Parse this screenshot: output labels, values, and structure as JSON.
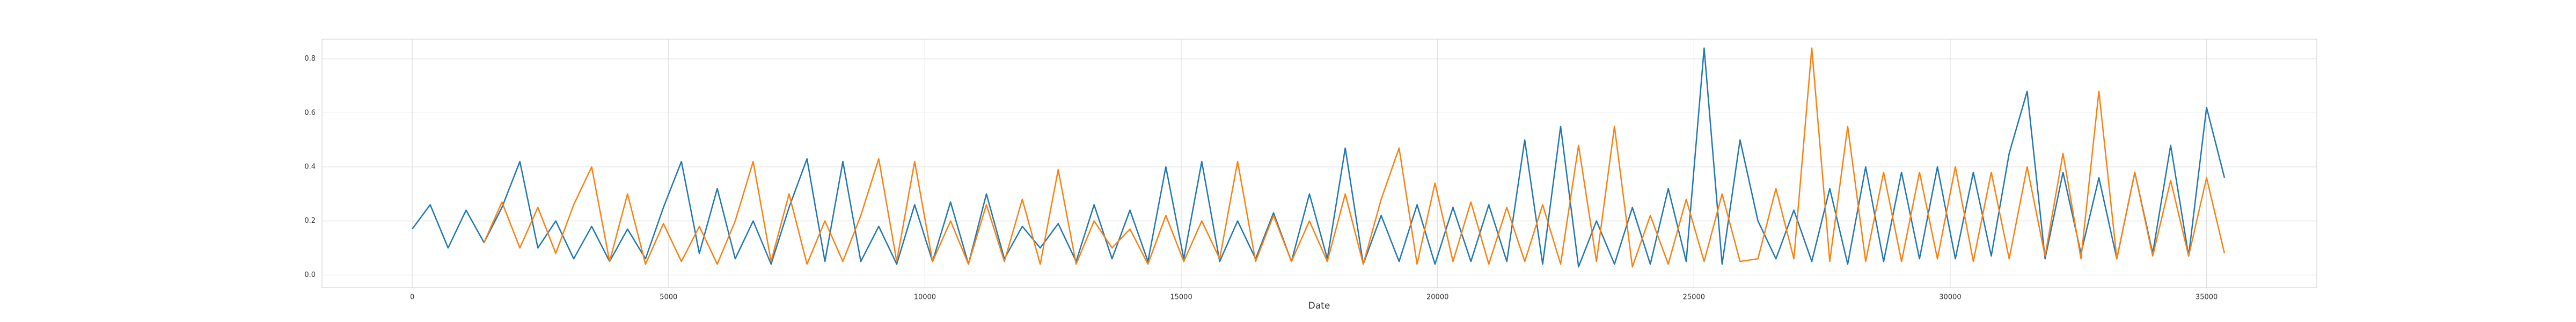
{
  "chart_data": {
    "type": "line",
    "xlabel": "Date",
    "x": [
      0,
      350,
      700,
      1050,
      1400,
      1750,
      2100,
      2450,
      2800,
      3150,
      3500,
      3850,
      4200,
      4550,
      4900,
      5250,
      5600,
      5950,
      6300,
      6650,
      7000,
      7350,
      7700,
      8050,
      8400,
      8750,
      9100,
      9450,
      9800,
      10150,
      10500,
      10850,
      11200,
      11550,
      11900,
      12250,
      12600,
      12950,
      13300,
      13650,
      14000,
      14350,
      14700,
      15050,
      15400,
      15750,
      16100,
      16450,
      16800,
      17150,
      17500,
      17850,
      18200,
      18550,
      18900,
      19250,
      19600,
      19950,
      20300,
      20650,
      21000,
      21350,
      21700,
      22050,
      22400,
      22750,
      23100,
      23450,
      23800,
      24150,
      24500,
      24850,
      25200,
      25550,
      25900,
      26250,
      26600,
      26950,
      27300,
      27650,
      28000,
      28350,
      28700,
      29050,
      29400,
      29750,
      30100,
      30450,
      30800,
      31150,
      31500,
      31850,
      32200,
      32550,
      32900,
      33250,
      33600,
      33950,
      34300,
      34650,
      35000,
      35350
    ],
    "series": [
      {
        "color": "#1f77b4",
        "values": [
          0.17,
          0.26,
          0.1,
          0.24,
          0.12,
          0.25,
          0.42,
          0.1,
          0.2,
          0.06,
          0.18,
          0.05,
          0.17,
          0.06,
          0.25,
          0.42,
          0.08,
          0.32,
          0.06,
          0.2,
          0.04,
          0.25,
          0.43,
          0.05,
          0.42,
          0.05,
          0.18,
          0.04,
          0.26,
          0.05,
          0.27,
          0.04,
          0.3,
          0.06,
          0.18,
          0.1,
          0.19,
          0.05,
          0.26,
          0.06,
          0.24,
          0.05,
          0.4,
          0.06,
          0.42,
          0.05,
          0.2,
          0.06,
          0.23,
          0.05,
          0.3,
          0.06,
          0.47,
          0.04,
          0.22,
          0.05,
          0.26,
          0.04,
          0.25,
          0.05,
          0.26,
          0.05,
          0.5,
          0.04,
          0.55,
          0.03,
          0.2,
          0.04,
          0.25,
          0.04,
          0.32,
          0.05,
          0.84,
          0.04,
          0.5,
          0.2,
          0.06,
          0.24,
          0.05,
          0.32,
          0.04,
          0.4,
          0.05,
          0.38,
          0.06,
          0.4,
          0.06,
          0.38,
          0.07,
          0.45,
          0.68,
          0.06,
          0.38,
          0.08,
          0.36,
          0.06,
          0.38,
          0.08,
          0.48,
          0.07,
          0.62,
          0.36
        ]
      },
      {
        "color": "#ff7f0e",
        "values": [
          null,
          null,
          null,
          null,
          0.12,
          0.27,
          0.1,
          0.25,
          0.08,
          0.26,
          0.4,
          0.05,
          0.3,
          0.04,
          0.19,
          0.05,
          0.18,
          0.04,
          0.2,
          0.42,
          0.05,
          0.3,
          0.04,
          0.2,
          0.05,
          0.22,
          0.43,
          0.05,
          0.42,
          0.05,
          0.2,
          0.04,
          0.26,
          0.05,
          0.28,
          0.04,
          0.39,
          0.04,
          0.2,
          0.1,
          0.17,
          0.04,
          0.22,
          0.05,
          0.2,
          0.06,
          0.42,
          0.05,
          0.22,
          0.05,
          0.2,
          0.05,
          0.3,
          0.04,
          0.28,
          0.47,
          0.04,
          0.34,
          0.05,
          0.27,
          0.04,
          0.25,
          0.05,
          0.26,
          0.04,
          0.48,
          0.05,
          0.55,
          0.03,
          0.22,
          0.04,
          0.28,
          0.05,
          0.3,
          0.05,
          0.06,
          0.32,
          0.06,
          0.84,
          0.05,
          0.55,
          0.05,
          0.38,
          0.05,
          0.38,
          0.06,
          0.4,
          0.05,
          0.38,
          0.06,
          0.4,
          0.07,
          0.45,
          0.06,
          0.68,
          0.06,
          0.38,
          0.07,
          0.35,
          0.07,
          0.36,
          0.08
        ]
      }
    ],
    "xlim": [
      -1760,
      37150
    ],
    "ylim": [
      -0.047,
      0.873
    ],
    "xticks": [
      0,
      5000,
      10000,
      15000,
      20000,
      25000,
      30000,
      35000
    ],
    "yticks": [
      {
        "value": 0,
        "label": "0.0"
      },
      0.2,
      0.4,
      0.6,
      0.8
    ],
    "grid": true
  }
}
